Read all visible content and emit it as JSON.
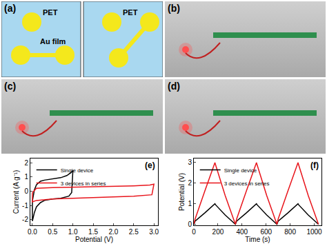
{
  "panels": [
    {
      "label": "(a)",
      "left": {
        "substrate": "PET",
        "film": "Au film"
      },
      "right": {
        "substrate": "PET"
      }
    },
    {
      "label": "(b)"
    },
    {
      "label": "(c)"
    },
    {
      "label": "(d)"
    }
  ],
  "chart_data": [
    {
      "type": "line",
      "annotations": [
        "(e)"
      ],
      "x_label": "Potential (V)",
      "y_label": "Current (A g⁻¹)",
      "xlim": [
        -0.05,
        3.1
      ],
      "xticks": [
        {
          "value": 0,
          "label": "0.0"
        },
        {
          "value": 0.5,
          "label": "0.5"
        },
        {
          "value": 1,
          "label": "1.0"
        },
        {
          "value": 1.5,
          "label": "1.5"
        },
        {
          "value": 2,
          "label": "2.0"
        },
        {
          "value": 2.5,
          "label": "2.5"
        },
        {
          "value": 3,
          "label": "3.0"
        }
      ],
      "ylim": [
        -2.4,
        2.3
      ],
      "yticks": [
        -2,
        -1,
        0,
        1,
        2
      ],
      "legend": "upper left",
      "series": [
        {
          "name": "Single device",
          "color": "#000000",
          "x": [
            0,
            0.05,
            0.1,
            0.2,
            0.3,
            0.5,
            0.7,
            0.85,
            0.95,
            1.0,
            0.97,
            0.9,
            0.7,
            0.5,
            0.3,
            0.2,
            0.1,
            0.05,
            0.0,
            0.0
          ],
          "values": [
            -0.7,
            0.1,
            0.45,
            0.7,
            0.78,
            0.85,
            0.95,
            1.1,
            1.3,
            1.45,
            -0.1,
            -0.35,
            -0.5,
            -0.55,
            -0.65,
            -0.8,
            -1.1,
            -1.5,
            -2.1,
            -0.7
          ]
        },
        {
          "name": "3 devices in series",
          "color": "#e8141b",
          "x": [
            0,
            0.1,
            0.5,
            1.0,
            1.5,
            2.0,
            2.5,
            2.9,
            3.0,
            2.95,
            2.5,
            2.0,
            1.5,
            1.0,
            0.5,
            0.1,
            0.0,
            0.0
          ],
          "values": [
            -0.1,
            0.2,
            0.25,
            0.28,
            0.3,
            0.33,
            0.38,
            0.43,
            0.5,
            -0.25,
            -0.35,
            -0.4,
            -0.45,
            -0.5,
            -0.55,
            -0.65,
            -0.75,
            -0.1
          ]
        }
      ]
    },
    {
      "type": "line",
      "annotations": [
        "(f)"
      ],
      "x_label": "Time (s)",
      "y_label": "Potential (V)",
      "xlim": [
        0,
        1060
      ],
      "xticks": [
        0,
        200,
        400,
        600,
        800,
        1000
      ],
      "ylim": [
        -0.05,
        3.2
      ],
      "yticks": [
        0,
        1,
        2,
        3
      ],
      "legend": "upper left",
      "series": [
        {
          "name": "Single device",
          "color": "#000000",
          "x": [
            0,
            10,
            90,
            175,
            180,
            260,
            345,
            355,
            435,
            520,
            525,
            605,
            690,
            700,
            780,
            865,
            870,
            950,
            1035
          ],
          "values": [
            0,
            0.15,
            0.55,
            1.0,
            0.95,
            0.45,
            0,
            0.15,
            0.55,
            1.0,
            0.95,
            0.45,
            0,
            0.15,
            0.55,
            1.0,
            0.95,
            0.45,
            0
          ]
        },
        {
          "name": "3 devices in series",
          "color": "#e8141b",
          "x": [
            0,
            10,
            90,
            175,
            180,
            260,
            345,
            355,
            435,
            520,
            525,
            605,
            690,
            700,
            780,
            865,
            870,
            950,
            1035
          ],
          "values": [
            0,
            0.25,
            1.6,
            3.0,
            2.9,
            1.4,
            0,
            0.25,
            1.6,
            3.0,
            2.9,
            1.4,
            0,
            0.25,
            1.6,
            3.0,
            2.9,
            1.4,
            0
          ]
        }
      ]
    }
  ]
}
